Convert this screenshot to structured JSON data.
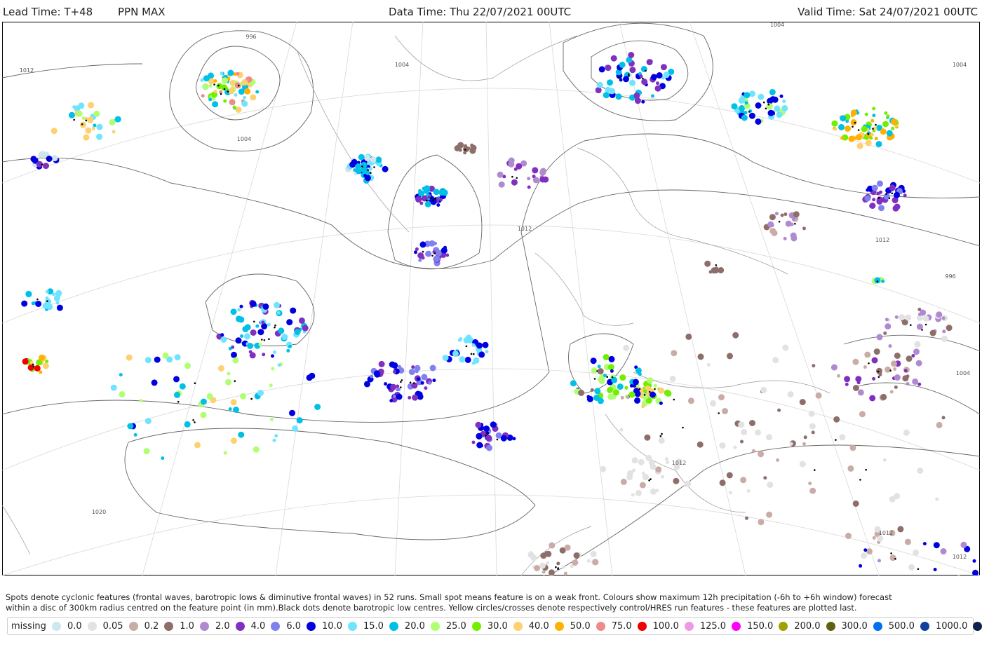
{
  "header": {
    "lead_time": "Lead Time: T+48",
    "field": "PPN MAX",
    "data_time": "Data Time: Thu 22/07/2021 00UTC",
    "valid_time": "Valid Time: Sat 24/07/2021 00UTC"
  },
  "map": {
    "isobar_labels": [
      "1012",
      "996",
      "1004",
      "1004",
      "1012",
      "1004",
      "1004",
      "1012",
      "996",
      "1004",
      "1012",
      "1012",
      "1012",
      "1020"
    ]
  },
  "caption": [
    "Spots denote cyclonic features (frontal waves, barotropic lows & diminutive frontal waves) in 52 runs. Small spot means feature is on a weak front. Colours show maximum 12h precipitation (-6h to +6h window) forecast",
    "within a disc of 300km radius centred on the feature point (in mm).Black dots denote barotropic low centres. Yellow circles/crosses denote respectively control/HRES run features - these features are plotted last."
  ],
  "legend": {
    "items": [
      {
        "label": "missing",
        "color": "#cfe6ee"
      },
      {
        "label": "0.0",
        "color": "#e2e2e2"
      },
      {
        "label": "0.05",
        "color": "#c9aca6"
      },
      {
        "label": "0.2",
        "color": "#8d6e6a"
      },
      {
        "label": "1.0",
        "color": "#b08ad0"
      },
      {
        "label": "2.0",
        "color": "#8030c0"
      },
      {
        "label": "4.0",
        "color": "#8080f0"
      },
      {
        "label": "6.0",
        "color": "#0000e0"
      },
      {
        "label": "10.0",
        "color": "#70e4ff"
      },
      {
        "label": "15.0",
        "color": "#00c0e8"
      },
      {
        "label": "20.0",
        "color": "#b0ff70"
      },
      {
        "label": "25.0",
        "color": "#70f000"
      },
      {
        "label": "30.0",
        "color": "#ffd070"
      },
      {
        "label": "40.0",
        "color": "#ffb000"
      },
      {
        "label": "50.0",
        "color": "#f08a8a"
      },
      {
        "label": "75.0",
        "color": "#f00000"
      },
      {
        "label": "100.0",
        "color": "#f098e8"
      },
      {
        "label": "125.0",
        "color": "#ff00ff"
      },
      {
        "label": "150.0",
        "color": "#a0a000"
      },
      {
        "label": "200.0",
        "color": "#606010"
      },
      {
        "label": "300.0",
        "color": "#0070f0"
      },
      {
        "label": "500.0",
        "color": "#1040a0"
      },
      {
        "label": "1000.0",
        "color": "#102050"
      }
    ]
  }
}
